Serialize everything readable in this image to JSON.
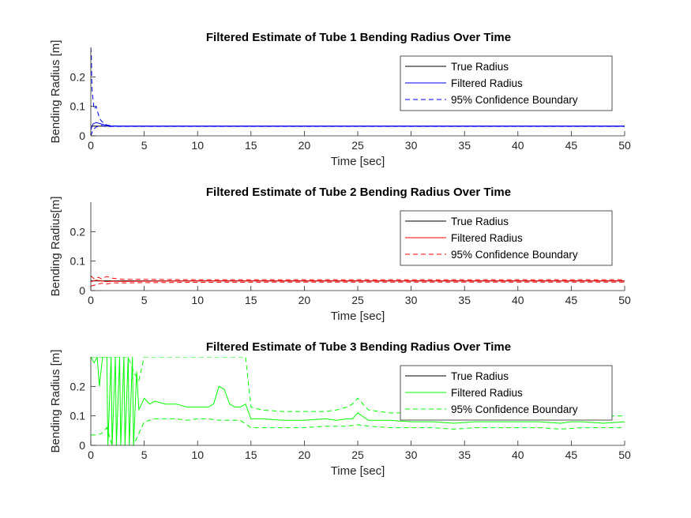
{
  "chart_data": [
    {
      "type": "line",
      "title": "Filtered Estimate of Tube 1 Bending Radius Over Time",
      "xlabel": "Time [sec]",
      "ylabel": "Bending Radius [m]",
      "xlim": [
        0,
        50
      ],
      "ylim": [
        0,
        0.3
      ],
      "xticks": [
        "0",
        "5",
        "10",
        "15",
        "20",
        "25",
        "30",
        "35",
        "40",
        "45",
        "50"
      ],
      "yticks": [
        "0",
        "0.1",
        "0.2"
      ],
      "legend_position": "top-right",
      "legend": [
        "True Radius",
        "Filtered Radius",
        "95% Confidence Boundary"
      ],
      "colors": {
        "true": "#000000",
        "filtered": "#0000ff",
        "bound": "#0000ff"
      },
      "series": [
        {
          "name": "True Radius",
          "style": "solid",
          "x": [
            0,
            50
          ],
          "y": [
            0.033,
            0.033
          ]
        },
        {
          "name": "Filtered Radius",
          "style": "solid",
          "x": [
            0,
            0.2,
            0.5,
            1,
            1.5,
            2,
            3,
            50
          ],
          "y": [
            0.02,
            0.04,
            0.045,
            0.04,
            0.035,
            0.033,
            0.033,
            0.033
          ]
        },
        {
          "name": "95% Confidence Boundary",
          "style": "dashed",
          "x": [
            0,
            0.05,
            0.1,
            0.3,
            0.5,
            0.8,
            1,
            1.3,
            1.6,
            2,
            3,
            50
          ],
          "y": [
            0.3,
            0.27,
            0.16,
            0.09,
            0.1,
            0.06,
            0.05,
            0.04,
            0.036,
            0.034,
            0.033,
            0.033
          ]
        },
        {
          "name": "95% Confidence Boundary",
          "style": "dashed",
          "x": [
            0,
            0.2,
            0.5,
            1,
            1.5,
            2,
            50
          ],
          "y": [
            0.0,
            0.02,
            0.03,
            0.035,
            0.031,
            0.032,
            0.032
          ]
        }
      ]
    },
    {
      "type": "line",
      "title": "Filtered Estimate of Tube 2 Bending Radius Over Time",
      "xlabel": "Time [sec]",
      "ylabel": "Bending Radius[m]",
      "xlim": [
        0,
        50
      ],
      "ylim": [
        0,
        0.3
      ],
      "xticks": [
        "0",
        "5",
        "10",
        "15",
        "20",
        "25",
        "30",
        "35",
        "40",
        "45",
        "50"
      ],
      "yticks": [
        "0",
        "0.1",
        "0.2"
      ],
      "legend_position": "top-right",
      "legend": [
        "True Radius",
        "Filtered Radius",
        "95% Confidence Boundary"
      ],
      "colors": {
        "true": "#000000",
        "filtered": "#ff0000",
        "bound": "#ff0000"
      },
      "series": [
        {
          "name": "True Radius",
          "style": "solid",
          "x": [
            0,
            50
          ],
          "y": [
            0.033,
            0.033
          ]
        },
        {
          "name": "Filtered Radius",
          "style": "solid",
          "x": [
            0,
            0.5,
            1,
            1.5,
            2,
            3,
            5,
            10,
            20,
            50
          ],
          "y": [
            0.03,
            0.035,
            0.033,
            0.03,
            0.032,
            0.031,
            0.032,
            0.033,
            0.033,
            0.033
          ]
        },
        {
          "name": "95% Confidence Boundary",
          "style": "dashed",
          "x": [
            0,
            0.3,
            0.7,
            1,
            1.5,
            2,
            3,
            5,
            10,
            20,
            50
          ],
          "y": [
            0.05,
            0.04,
            0.045,
            0.04,
            0.048,
            0.042,
            0.038,
            0.038,
            0.037,
            0.037,
            0.037
          ]
        },
        {
          "name": "95% Confidence Boundary",
          "style": "dashed",
          "x": [
            0,
            0.5,
            1,
            1.5,
            2,
            3,
            5,
            10,
            20,
            50
          ],
          "y": [
            0.015,
            0.02,
            0.025,
            0.022,
            0.026,
            0.026,
            0.027,
            0.028,
            0.029,
            0.029
          ]
        }
      ]
    },
    {
      "type": "line",
      "title": "Filtered Estimate of Tube 3 Bending Radius Over Time",
      "xlabel": "Time [sec]",
      "ylabel": "Bending Radius [m]",
      "xlim": [
        0,
        50
      ],
      "ylim": [
        0,
        0.3
      ],
      "xticks": [
        "0",
        "5",
        "10",
        "15",
        "20",
        "25",
        "30",
        "35",
        "40",
        "45",
        "50"
      ],
      "yticks": [
        "0",
        "0.1",
        "0.2"
      ],
      "legend_position": "top-right",
      "legend": [
        "True Radius",
        "Filtered Radius",
        "95% Confidence Boundary"
      ],
      "colors": {
        "true": "#000000",
        "filtered": "#00ff00",
        "bound": "#00ff00"
      },
      "series": [
        {
          "name": "True Radius",
          "style": "solid",
          "x": [],
          "y": []
        },
        {
          "name": "Filtered Radius",
          "style": "solid",
          "x": [
            0,
            0.3,
            0.6,
            0.8,
            1.1,
            1.5,
            1.6,
            1.9,
            2.0,
            2.3,
            2.4,
            2.7,
            2.8,
            3.1,
            3.2,
            3.5,
            3.6,
            3.9,
            4.0,
            4.3,
            4.5,
            5.0,
            5.5,
            6,
            7,
            8,
            9,
            10,
            11,
            11.5,
            12,
            12.5,
            13,
            13.5,
            14,
            14.5,
            15,
            16,
            18,
            20,
            22,
            23,
            24,
            24.5,
            25,
            26,
            28,
            30,
            32,
            34,
            36,
            38,
            40,
            42,
            44,
            45,
            46,
            48,
            50
          ],
          "y": [
            0.3,
            0.28,
            0.3,
            0.2,
            0.3,
            0.3,
            0.0,
            0.3,
            0.0,
            0.3,
            0.0,
            0.3,
            0.0,
            0.3,
            0.0,
            0.3,
            0.0,
            0.3,
            0.0,
            0.25,
            0.12,
            0.16,
            0.14,
            0.15,
            0.14,
            0.14,
            0.13,
            0.13,
            0.13,
            0.14,
            0.2,
            0.19,
            0.14,
            0.13,
            0.13,
            0.14,
            0.09,
            0.09,
            0.085,
            0.085,
            0.09,
            0.085,
            0.09,
            0.09,
            0.11,
            0.085,
            0.085,
            0.08,
            0.08,
            0.075,
            0.08,
            0.08,
            0.08,
            0.08,
            0.075,
            0.08,
            0.08,
            0.075,
            0.08
          ]
        },
        {
          "name": "95% Confidence Boundary",
          "style": "dashed",
          "x": [
            0,
            1.0,
            1.5,
            2.0,
            2.5,
            3.0,
            3.5,
            4.0,
            4.5,
            5.0,
            5.5,
            6,
            8,
            10,
            11.5,
            12,
            12.5,
            13,
            14,
            14.5,
            15,
            16,
            18,
            20,
            22,
            23,
            24,
            24.5,
            25,
            26,
            28,
            30,
            32,
            34,
            36,
            38,
            40,
            42,
            44,
            45,
            46,
            48,
            50
          ],
          "y": [
            0.3,
            0.3,
            0.3,
            0.3,
            0.3,
            0.3,
            0.3,
            0.25,
            0.22,
            0.3,
            0.3,
            0.3,
            0.3,
            0.3,
            0.3,
            0.3,
            0.3,
            0.3,
            0.3,
            0.3,
            0.13,
            0.12,
            0.115,
            0.115,
            0.115,
            0.12,
            0.13,
            0.14,
            0.16,
            0.12,
            0.11,
            0.11,
            0.105,
            0.1,
            0.1,
            0.1,
            0.1,
            0.1,
            0.1,
            0.1,
            0.1,
            0.1,
            0.1
          ]
        },
        {
          "name": "95% Confidence Boundary",
          "style": "dashed",
          "x": [
            0,
            0.5,
            1,
            1.5,
            2,
            3,
            4,
            4.5,
            5.0,
            6,
            7,
            8,
            9,
            10,
            11,
            12,
            13,
            14,
            15,
            16,
            18,
            20,
            22,
            24,
            25,
            26,
            28,
            30,
            32,
            34,
            36,
            38,
            40,
            42,
            44,
            46,
            48,
            50
          ],
          "y": [
            0.035,
            0.035,
            0.04,
            0.06,
            0.0,
            0.0,
            0.0,
            0.04,
            0.08,
            0.09,
            0.09,
            0.09,
            0.085,
            0.09,
            0.09,
            0.085,
            0.085,
            0.085,
            0.06,
            0.06,
            0.06,
            0.06,
            0.065,
            0.065,
            0.07,
            0.065,
            0.06,
            0.06,
            0.06,
            0.055,
            0.06,
            0.06,
            0.06,
            0.06,
            0.055,
            0.06,
            0.06,
            0.06
          ]
        }
      ]
    }
  ]
}
